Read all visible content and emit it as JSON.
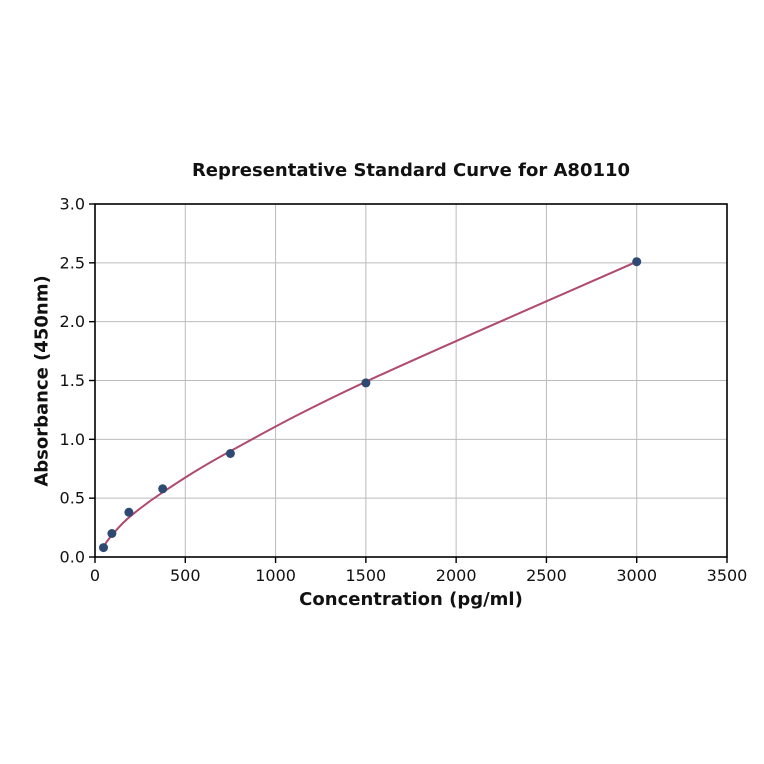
{
  "figure": {
    "background": "#ffffff"
  },
  "chart_data": {
    "type": "scatter",
    "title": "Representative Standard Curve for A80110",
    "xlabel": "Concentration (pg/ml)",
    "ylabel": "Absorbance (450nm)",
    "xlim": [
      0,
      3500
    ],
    "ylim": [
      0,
      3
    ],
    "x_ticks": [
      0,
      500,
      1000,
      1500,
      2000,
      2500,
      3000,
      3500
    ],
    "x_tick_labels": [
      "0",
      "500",
      "1000",
      "1500",
      "2000",
      "2500",
      "3000",
      "3500"
    ],
    "y_ticks": [
      0,
      0.5,
      1,
      1.5,
      2,
      2.5,
      3
    ],
    "y_tick_labels": [
      "0.0",
      "0.5",
      "1.0",
      "1.5",
      "2.0",
      "2.5",
      "3.0"
    ],
    "grid": true,
    "grid_color": "#bbbbbb",
    "axis_color": "#000000",
    "legend": "none",
    "series": [
      {
        "name": "fit-curve",
        "type": "line",
        "color": "#b04a6e",
        "x": [
          30,
          46.9,
          93.8,
          187.5,
          375,
          750,
          1500,
          3000
        ],
        "y": [
          0.055,
          0.09,
          0.185,
          0.335,
          0.55,
          0.9,
          1.49,
          2.51
        ]
      },
      {
        "name": "standard-points",
        "type": "scatter",
        "marker": "circle",
        "color": "#2e4a73",
        "x": [
          46.9,
          93.8,
          187.5,
          375,
          750,
          1500,
          3000
        ],
        "y": [
          0.08,
          0.2,
          0.38,
          0.58,
          0.88,
          1.48,
          2.51
        ]
      }
    ]
  }
}
